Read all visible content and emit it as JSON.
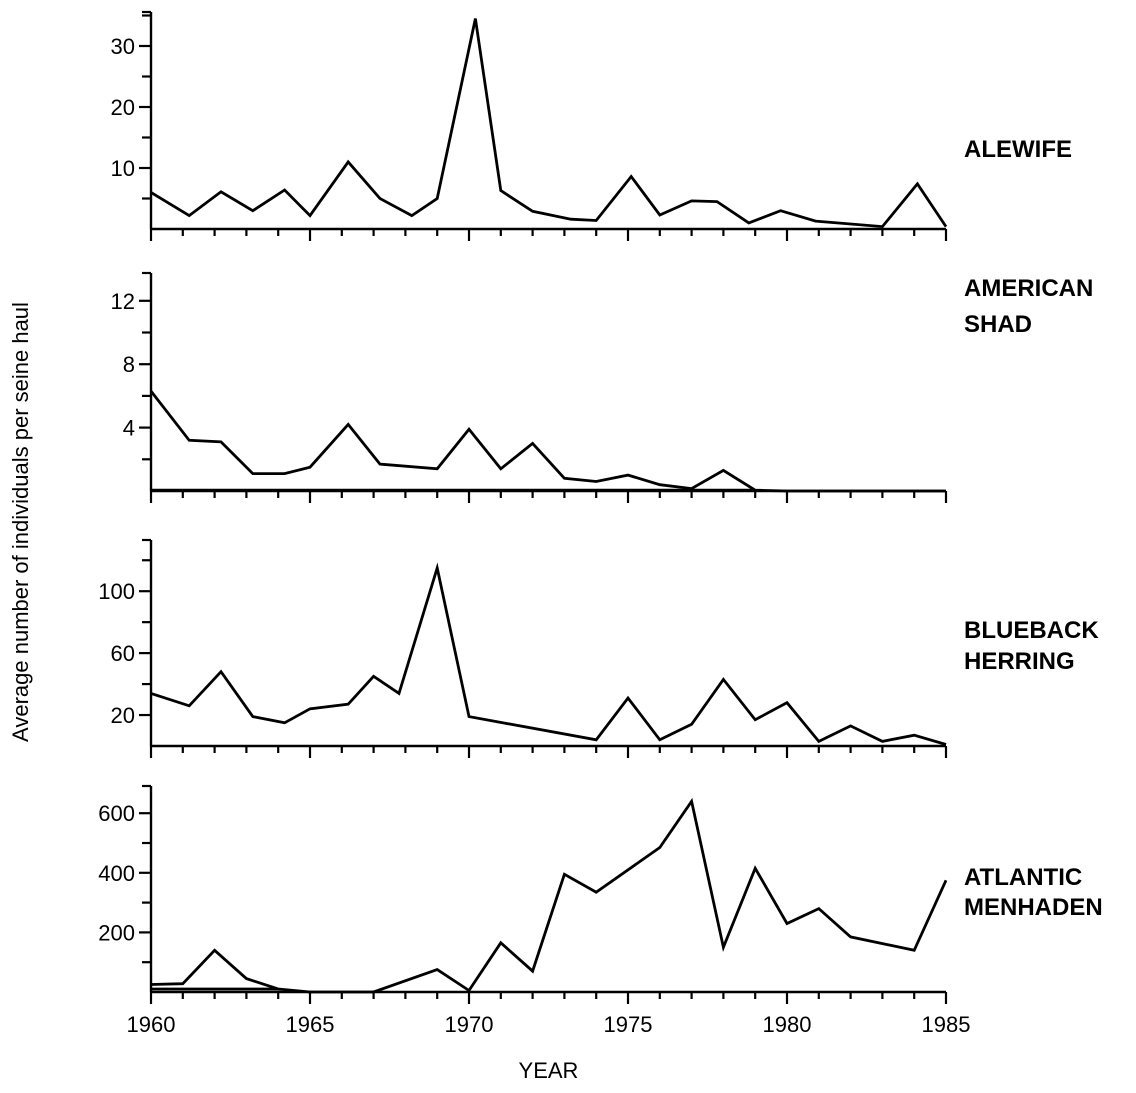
{
  "chart_data": {
    "type": "line",
    "ylabel": "Average number of individuals per seine haul",
    "xlabel": "YEAR",
    "x_ticks": [
      1960,
      1965,
      1970,
      1975,
      1980,
      1985
    ],
    "panels": [
      {
        "label": "ALEWIFE",
        "y_ticks": [
          10,
          20,
          30
        ],
        "ylim": [
          0,
          35
        ],
        "series": {
          "x": [
            1960,
            1961.2,
            1962.2,
            1963.2,
            1964.2,
            1965,
            1966.2,
            1967.2,
            1968.2,
            1969,
            1970.2,
            1971,
            1972,
            1973.2,
            1974,
            1975.1,
            1976,
            1977,
            1977.8,
            1978.8,
            1979.8,
            1980.9,
            1983,
            1984.1,
            1985
          ],
          "y": [
            6,
            2.2,
            6.1,
            3,
            6.4,
            2.2,
            11,
            5,
            2.2,
            5,
            34.5,
            6.3,
            2.9,
            1.6,
            1.4,
            8.6,
            2.3,
            4.6,
            4.5,
            1,
            3,
            1.3,
            0.4,
            7.4,
            0.4
          ]
        }
      },
      {
        "label": "AMERICAN SHAD",
        "label_lines": [
          "AMERICAN",
          "SHAD"
        ],
        "y_ticks": [
          4,
          8,
          12
        ],
        "ylim": [
          0,
          14
        ],
        "series": {
          "x": [
            1960,
            1961.2,
            1962.2,
            1963.2,
            1964.2,
            1965,
            1966.2,
            1967.2,
            1969,
            1970,
            1971,
            1972,
            1973,
            1974,
            1975,
            1976,
            1977,
            1978,
            1979,
            1980,
            1981,
            1982,
            1983,
            1984,
            1985
          ],
          "y": [
            6.3,
            3.2,
            3.1,
            1.1,
            1.1,
            1.5,
            4.2,
            1.7,
            1.4,
            3.9,
            1.4,
            3,
            0.8,
            0.6,
            1,
            0.4,
            0.15,
            1.3,
            0.05,
            0,
            0,
            0,
            0,
            0,
            0
          ]
        },
        "baseline_segment": {
          "x": [
            1960,
            1979
          ],
          "y": [
            0.05,
            0.05
          ]
        }
      },
      {
        "label": "BLUEBACK HERRING",
        "label_lines": [
          "BLUEBACK",
          "HERRING"
        ],
        "y_ticks": [
          20,
          60,
          100
        ],
        "ylim": [
          0,
          140
        ],
        "series": {
          "x": [
            1960,
            1961.2,
            1962.2,
            1963.2,
            1964.2,
            1965,
            1966.2,
            1967,
            1967.8,
            1969,
            1970,
            1974,
            1975,
            1976,
            1977,
            1978,
            1979,
            1980,
            1981,
            1982,
            1983,
            1984,
            1985
          ],
          "y": [
            34,
            26,
            48,
            19,
            15,
            24,
            27,
            45,
            34,
            115,
            19,
            4,
            31,
            4,
            14,
            43,
            17,
            28,
            3,
            13,
            3,
            7,
            1
          ]
        }
      },
      {
        "label": "ATLANTIC MENHADEN",
        "label_lines": [
          "ATLANTIC",
          "MENHADEN"
        ],
        "y_ticks": [
          200,
          400,
          600
        ],
        "ylim": [
          0,
          700
        ],
        "series": {
          "x": [
            1960,
            1961,
            1962,
            1963,
            1964,
            1965,
            1966,
            1967,
            1969,
            1970,
            1971,
            1972,
            1973,
            1974,
            1976,
            1977,
            1978,
            1979,
            1980,
            1981,
            1982,
            1984,
            1985
          ],
          "y": [
            25,
            28,
            140,
            45,
            10,
            0,
            0,
            0,
            75,
            5,
            165,
            70,
            395,
            335,
            485,
            640,
            150,
            415,
            230,
            280,
            185,
            140,
            375
          ]
        },
        "baseline_segment": {
          "x": [
            1960,
            1964
          ],
          "y": [
            10,
            10
          ]
        }
      }
    ]
  }
}
